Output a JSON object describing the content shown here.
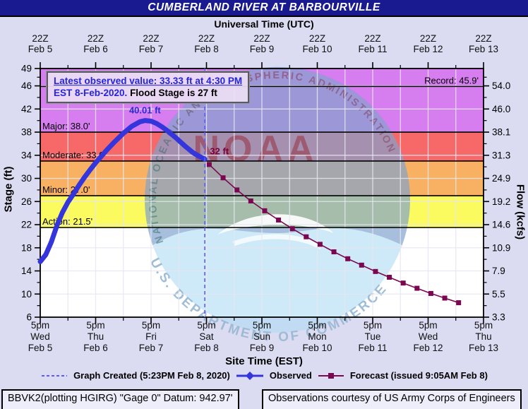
{
  "header": {
    "title": "CUMBERLAND RIVER AT BARBOURVILLE"
  },
  "annotation": {
    "line1": "Latest observed value: 33.33 ft at 4:30 PM",
    "line2_blue": "EST 8-Feb-2020.",
    "line2_black": "Flood Stage is 27 ft"
  },
  "legend": {
    "items": [
      {
        "label": "Graph Created (5:23PM Feb 8, 2020)",
        "marker": "dashed-line",
        "color": "#5b5bff"
      },
      {
        "label": "Observed",
        "marker": "line-diamond",
        "color": "#3535dc"
      },
      {
        "label": "Forecast (issued 9:05AM Feb 8)",
        "marker": "line-square",
        "color": "#7a0850"
      }
    ]
  },
  "footer": {
    "left": "BBVK2(plotting HGIRG) \"Gage 0\" Datum: 942.97'",
    "right": "Observations courtesy of US Army Corps of Engineers"
  },
  "watermark": {
    "org": "NOAA",
    "ring_top_text": "NATIONAL OCEANIC AND ATMOSPHERIC ADMINISTRATION",
    "ring_bottom_text": "U.S. DEPARTMENT OF COMMERCE"
  },
  "chart_data": {
    "type": "line",
    "title": "CUMBERLAND RIVER AT BARBOURVILLE",
    "x_axis": {
      "top_label": "Universal Time (UTC)",
      "bottom_label": "Site Time (EST)",
      "units": "days from Feb 5 5pm EST",
      "top_ticks": [
        {
          "time": "22Z",
          "date": "Feb 5"
        },
        {
          "time": "22Z",
          "date": "Feb 6"
        },
        {
          "time": "22Z",
          "date": "Feb 7"
        },
        {
          "time": "22Z",
          "date": "Feb 8"
        },
        {
          "time": "22Z",
          "date": "Feb 9"
        },
        {
          "time": "22Z",
          "date": "Feb 10"
        },
        {
          "time": "22Z",
          "date": "Feb 11"
        },
        {
          "time": "22Z",
          "date": "Feb 12"
        },
        {
          "time": "22Z",
          "date": "Feb 13"
        }
      ],
      "bottom_ticks": [
        {
          "time": "5pm",
          "day": "Wed",
          "date": "Feb 5"
        },
        {
          "time": "5pm",
          "day": "Thu",
          "date": "Feb 6"
        },
        {
          "time": "5pm",
          "day": "Fri",
          "date": "Feb 7"
        },
        {
          "time": "5pm",
          "day": "Sat",
          "date": "Feb 8"
        },
        {
          "time": "5pm",
          "day": "Sun",
          "date": "Feb 9"
        },
        {
          "time": "5pm",
          "day": "Mon",
          "date": "Feb 10"
        },
        {
          "time": "5pm",
          "day": "Tue",
          "date": "Feb 11"
        },
        {
          "time": "5pm",
          "day": "Wed",
          "date": "Feb 12"
        },
        {
          "time": "5pm",
          "day": "Thu",
          "date": "Feb 13"
        }
      ]
    },
    "y_left": {
      "label": "Stage (ft)",
      "range": [
        6,
        49
      ],
      "ticks": [
        49,
        46,
        42,
        38,
        34,
        30,
        26,
        22,
        18,
        14,
        10,
        6
      ]
    },
    "y_right": {
      "label": "Flow (kcfs)",
      "ticks": [
        {
          "stage": 46,
          "label": "54.0"
        },
        {
          "stage": 42,
          "label": "46.0"
        },
        {
          "stage": 38,
          "label": "38.1"
        },
        {
          "stage": 34,
          "label": "31.3"
        },
        {
          "stage": 30,
          "label": "24.9"
        },
        {
          "stage": 26,
          "label": "19.2"
        },
        {
          "stage": 22,
          "label": "14.6"
        },
        {
          "stage": 18,
          "label": "10.9"
        },
        {
          "stage": 14,
          "label": "7.9"
        },
        {
          "stage": 10,
          "label": "5.5"
        },
        {
          "stage": 6,
          "label": "3.3"
        }
      ]
    },
    "flood_categories": [
      {
        "name": "major",
        "label": "Major: 38.0'",
        "stage": 38.0,
        "top": 49,
        "color": "#d67df0"
      },
      {
        "name": "moderate",
        "label": "Moderate: 33.0'",
        "stage": 33.0,
        "top": 38,
        "color": "#f76868"
      },
      {
        "name": "minor",
        "label": "Minor: 27.0'",
        "stage": 27.0,
        "top": 33,
        "color": "#f8b162"
      },
      {
        "name": "action",
        "label": "Action: 21.5'",
        "stage": 21.5,
        "top": 27,
        "color": "#fbfb5f"
      },
      {
        "name": "normal",
        "label": "",
        "stage": 6,
        "top": 21.5,
        "color": "#ffffff"
      }
    ],
    "record": {
      "label": "Record: 45.9'",
      "stage": 45.9
    },
    "flood_stage_ft": 27,
    "graph_created_x": 2.97,
    "annotations": [
      {
        "name": "peak-label",
        "text": "40.01 ft",
        "x": 1.89,
        "stage": 40.01,
        "color": "#2a2ad4"
      },
      {
        "name": "forecast-crest-label",
        "text": "32 ft",
        "x": 3.05,
        "stage": 33.9,
        "color": "#7a0040"
      }
    ],
    "series": [
      {
        "name": "Observed",
        "color": "#3535dc",
        "marker": "none",
        "line_width": 7,
        "points": [
          [
            0,
            15.6
          ],
          [
            0.1,
            16.8
          ],
          [
            0.2,
            19.0
          ],
          [
            0.3,
            21.8
          ],
          [
            0.4,
            24.1
          ],
          [
            0.5,
            25.9
          ],
          [
            0.6,
            27.3
          ],
          [
            0.7,
            28.8
          ],
          [
            0.8,
            30.2
          ],
          [
            0.9,
            31.5
          ],
          [
            1.0,
            32.7
          ],
          [
            1.1,
            33.8
          ],
          [
            1.2,
            34.9
          ],
          [
            1.35,
            36.4
          ],
          [
            1.5,
            37.8
          ],
          [
            1.65,
            39.0
          ],
          [
            1.8,
            39.8
          ],
          [
            1.89,
            40.01
          ],
          [
            2.0,
            39.9
          ],
          [
            2.1,
            39.5
          ],
          [
            2.2,
            38.9
          ],
          [
            2.3,
            38.2
          ],
          [
            2.45,
            37.0
          ],
          [
            2.6,
            35.7
          ],
          [
            2.75,
            34.5
          ],
          [
            2.87,
            33.8
          ],
          [
            2.97,
            33.33
          ]
        ]
      },
      {
        "name": "Forecast",
        "color": "#7a0850",
        "marker": "square",
        "line_width": 1.6,
        "points": [
          [
            3.05,
            32.4
          ],
          [
            3.3,
            30.1
          ],
          [
            3.55,
            28.0
          ],
          [
            3.8,
            26.1
          ],
          [
            4.05,
            24.4
          ],
          [
            4.3,
            22.8
          ],
          [
            4.55,
            21.3
          ],
          [
            4.8,
            19.9
          ],
          [
            5.05,
            18.6
          ],
          [
            5.3,
            17.3
          ],
          [
            5.55,
            16.1
          ],
          [
            5.8,
            15.0
          ],
          [
            6.05,
            13.9
          ],
          [
            6.3,
            12.9
          ],
          [
            6.55,
            11.9
          ],
          [
            6.8,
            11.0
          ],
          [
            7.05,
            10.1
          ],
          [
            7.3,
            9.3
          ],
          [
            7.55,
            8.5
          ]
        ]
      }
    ],
    "colors": {
      "background": "#dbdbf2",
      "titlebar": "#1a1a90",
      "gridline": "#e7e7f2",
      "graph_created_line": "#5b5bff"
    }
  }
}
